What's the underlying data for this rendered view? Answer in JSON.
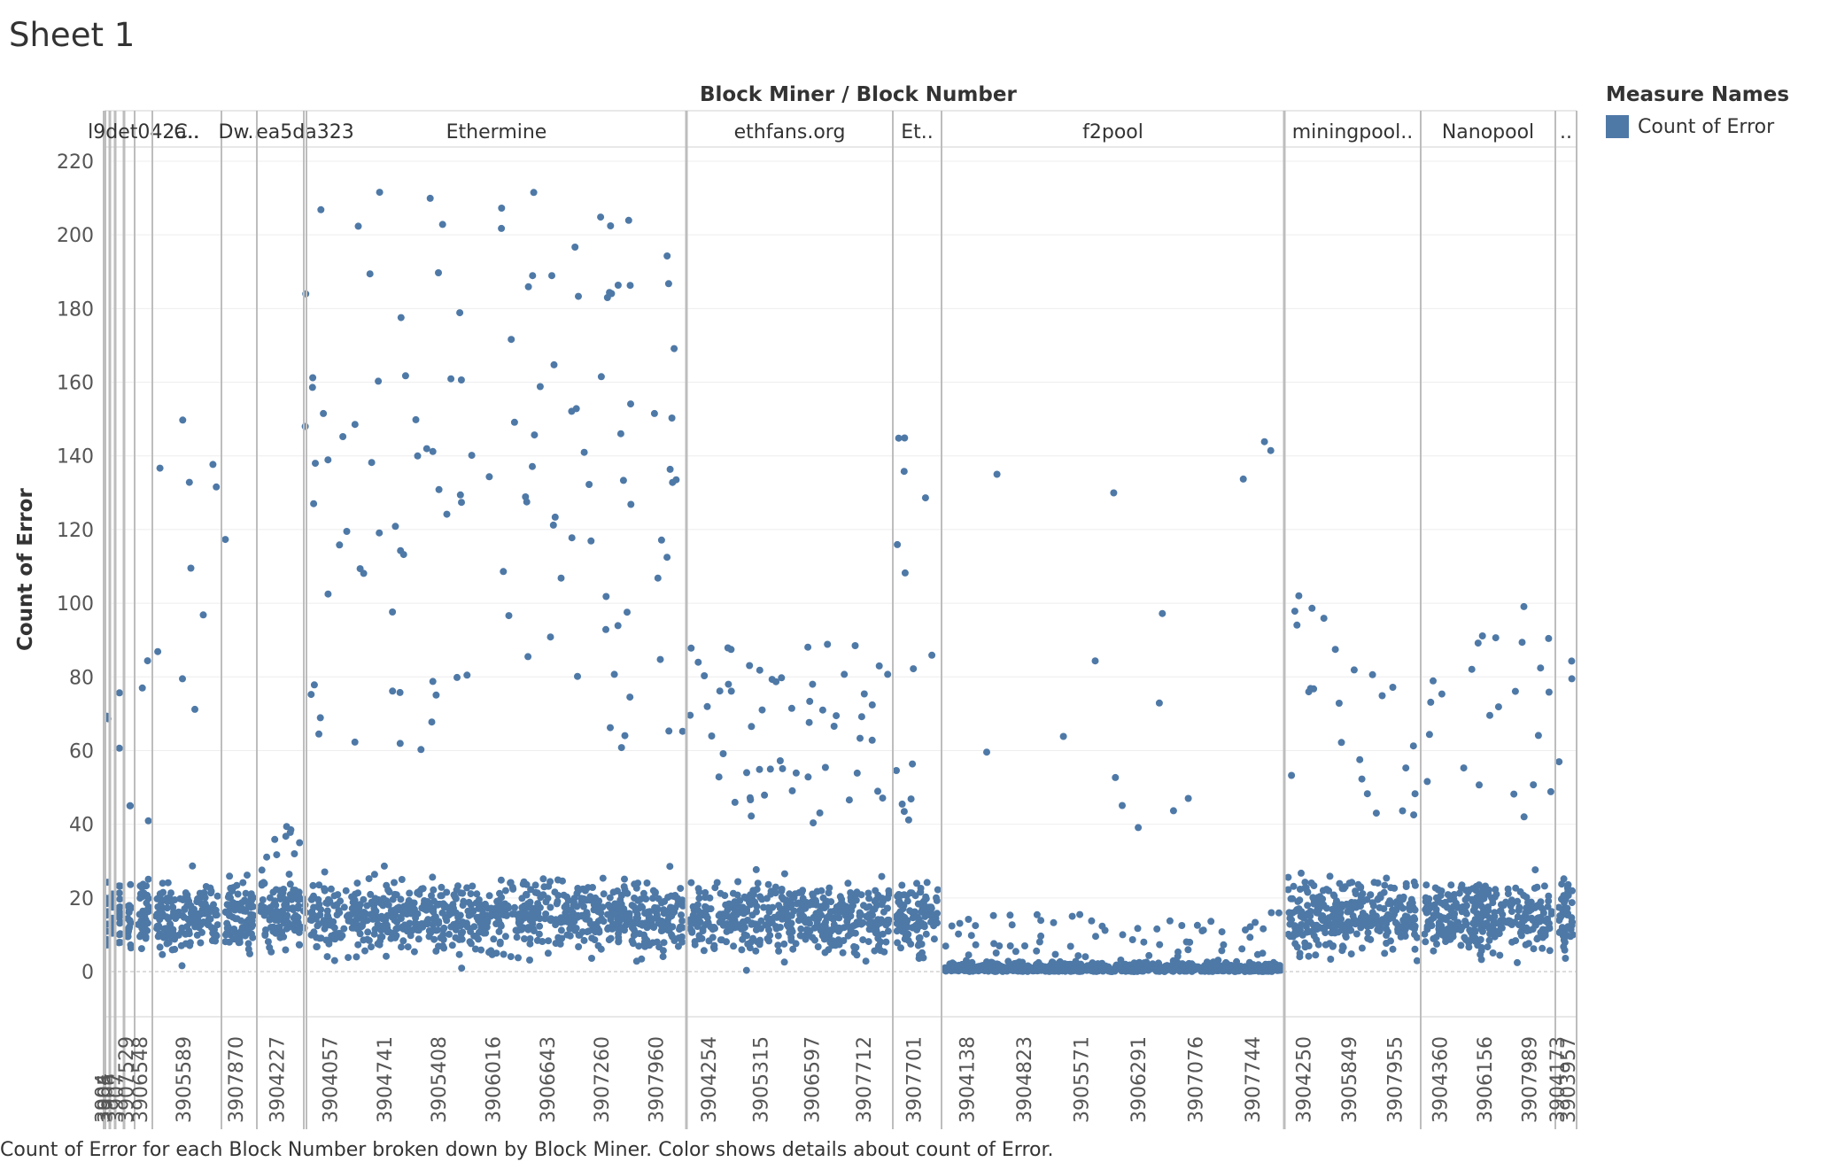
{
  "sheet": {
    "title": "Sheet 1"
  },
  "caption": "Count of Error for each Block Number broken down by Block Miner.  Color shows details about count of Error.",
  "legend": {
    "title": "Measure Names",
    "items": [
      {
        "label": "Count of Error",
        "color": "#4e79a7"
      }
    ]
  },
  "chart_data": {
    "type": "scatter",
    "title": "",
    "column_header": "Block Miner  /  Block Number",
    "ylabel": "Count of Error",
    "ylim": [
      -10,
      225
    ],
    "yticks": [
      0,
      20,
      40,
      60,
      80,
      100,
      120,
      140,
      160,
      180,
      200,
      220
    ],
    "grid": true,
    "legend_position": "top-right",
    "point_color": "#4e79a7",
    "panes": [
      {
        "miner": "",
        "xlabels": [
          "3904",
          "3905"
        ],
        "ranges": {
          "hi": [
            60,
            80
          ],
          "hl": 0.06
        }
      },
      {
        "miner": "",
        "xlabels": [
          "3906"
        ],
        "ranges": {
          "hi": [
            60,
            80
          ],
          "hl": 0.06
        }
      },
      {
        "miner": "",
        "xlabels": [
          "3907"
        ],
        "ranges": {
          "hi": [
            60,
            80
          ],
          "hl": 0.06
        }
      },
      {
        "miner": "",
        "xlabels": [
          "3907529"
        ],
        "ranges": {
          "hi": [
            45,
            45
          ],
          "hl": 0.02
        }
      },
      {
        "miner": "l9det042a..",
        "xlabels": [
          "3906548"
        ],
        "ranges": {
          "hi": [
            40,
            116
          ],
          "hl": 0.08
        }
      },
      {
        "miner": "C..",
        "xlabels": [
          "3905589"
        ],
        "ranges": {
          "hi": [
            50,
            161
          ],
          "hl": 0.07
        }
      },
      {
        "miner": "Dw..",
        "xlabels": [
          "3907870"
        ],
        "ranges": {
          "hi": [
            42,
            184
          ],
          "hl": 0.03
        }
      },
      {
        "miner": "",
        "xlabels": [
          "3904227"
        ],
        "ranges": {
          "hi": [
            30,
            40
          ],
          "hl": 0.05
        }
      },
      {
        "miner": "ea5da323",
        "xlabels": [],
        "ranges": {
          "hi": [
            60,
            196
          ],
          "hl": 0.15
        }
      },
      {
        "miner": "Ethermine",
        "xlabels": [
          "3904057",
          "3904741",
          "3905408",
          "3906016",
          "3906643",
          "3907260",
          "3907960"
        ],
        "ranges": {
          "hi": [
            60,
            212
          ],
          "hl": 0.13
        }
      },
      {
        "miner": "ethfans.org",
        "xlabels": [
          "3904254",
          "3905315",
          "3906597",
          "3907712"
        ],
        "ranges": {
          "hi": [
            40,
            89
          ],
          "hl": 0.1
        }
      },
      {
        "miner": "Et..",
        "xlabels": [
          "3907701"
        ],
        "ranges": {
          "hi": [
            40,
            149
          ],
          "hl": 0.12
        }
      },
      {
        "miner": "f2pool",
        "xlabels": [
          "3904138",
          "3904823",
          "3905571",
          "3906291",
          "3907076",
          "3907744"
        ],
        "ranges": {
          "hi": [
            20,
            158
          ],
          "hl": 0.015
        }
      },
      {
        "miner": "miningpool..",
        "xlabels": [
          "3904250",
          "3905849",
          "3907955"
        ],
        "ranges": {
          "hi": [
            40,
            104
          ],
          "hl": 0.1
        }
      },
      {
        "miner": "Nanopool",
        "xlabels": [
          "3904360",
          "3906156",
          "3907989"
        ],
        "ranges": {
          "hi": [
            40,
            101
          ],
          "hl": 0.09
        }
      },
      {
        "miner": "..",
        "xlabels": [
          "3904173",
          "3903957"
        ],
        "ranges": {
          "hi": [
            40,
            91
          ],
          "hl": 0.1
        }
      }
    ]
  }
}
